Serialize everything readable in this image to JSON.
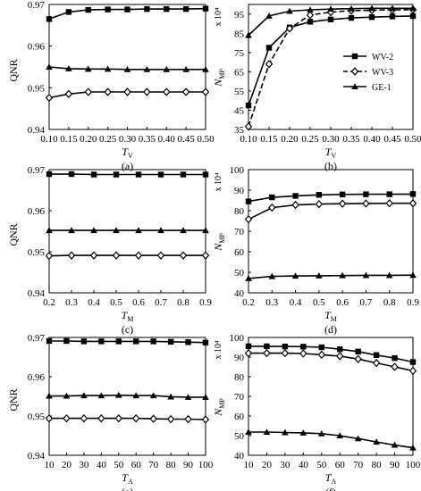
{
  "legend_entries": [
    "WV-2",
    "WV-3",
    "GE-1"
  ],
  "chart_data": [
    {
      "type": "line",
      "panel_label": "(a)",
      "xlabel": "T",
      "xlabel_sub": "V",
      "ylabel": "QNR",
      "ylabel_sub": "",
      "ylabel_extra": "",
      "x": [
        0.1,
        0.15,
        0.2,
        0.25,
        0.3,
        0.35,
        0.4,
        0.45,
        0.5
      ],
      "x_ticks": [
        "0.10",
        "0.15",
        "0.20",
        "0.25",
        "0.30",
        "0.35",
        "0.40",
        "0.45",
        "0.50"
      ],
      "xlim": [
        0.1,
        0.5
      ],
      "ylim": [
        0.94,
        0.97
      ],
      "y_ticks": [
        "0.94",
        "0.95",
        "0.96",
        "0.97"
      ],
      "series": [
        {
          "name": "WV-2",
          "marker": "square",
          "dashed": false,
          "values": [
            0.9665,
            0.9682,
            0.9687,
            0.9688,
            0.9688,
            0.9689,
            0.9689,
            0.9689,
            0.969
          ]
        },
        {
          "name": "WV-3",
          "marker": "diamond",
          "dashed": false,
          "values": [
            0.9476,
            0.9485,
            0.949,
            0.949,
            0.949,
            0.949,
            0.949,
            0.949,
            0.949
          ]
        },
        {
          "name": "GE-1",
          "marker": "triangle",
          "dashed": false,
          "values": [
            0.955,
            0.9546,
            0.9545,
            0.9545,
            0.9544,
            0.9544,
            0.9544,
            0.9544,
            0.9544
          ]
        }
      ]
    },
    {
      "type": "line",
      "panel_label": "(b)",
      "xlabel": "T",
      "xlabel_sub": "V",
      "ylabel": "N",
      "ylabel_sub": "MP",
      "ylabel_extra": "x 10⁴",
      "x": [
        0.1,
        0.15,
        0.2,
        0.25,
        0.3,
        0.35,
        0.4,
        0.45,
        0.5
      ],
      "x_ticks": [
        "0.10",
        "0.15",
        "0.20",
        "0.25",
        "0.30",
        "0.35",
        "0.40",
        "0.45",
        "0.50"
      ],
      "xlim": [
        0.1,
        0.5
      ],
      "ylim": [
        35,
        100
      ],
      "y_ticks": [
        "35",
        "45",
        "55",
        "65",
        "75",
        "85",
        "95"
      ],
      "legend_position": "right-middle",
      "series": [
        {
          "name": "WV-2",
          "marker": "square",
          "dashed": false,
          "values": [
            47.5,
            77.5,
            88.0,
            91.0,
            92.2,
            93.0,
            93.4,
            93.8,
            94.0
          ]
        },
        {
          "name": "WV-3",
          "marker": "diamond",
          "dashed": true,
          "values": [
            36.5,
            69.0,
            87.5,
            94.5,
            96.0,
            96.8,
            97.0,
            97.2,
            97.3
          ]
        },
        {
          "name": "GE-1",
          "marker": "triangle",
          "dashed": false,
          "values": [
            84.0,
            94.0,
            96.5,
            97.2,
            97.6,
            97.8,
            98.0,
            98.0,
            98.0
          ]
        }
      ]
    },
    {
      "type": "line",
      "panel_label": "(c)",
      "xlabel": "T",
      "xlabel_sub": "M",
      "ylabel": "QNR",
      "ylabel_sub": "",
      "ylabel_extra": "",
      "x": [
        0.2,
        0.3,
        0.4,
        0.5,
        0.6,
        0.7,
        0.8,
        0.9
      ],
      "x_ticks": [
        "0.2",
        "0.3",
        "0.4",
        "0.5",
        "0.6",
        "0.7",
        "0.8",
        "0.9"
      ],
      "xlim": [
        0.2,
        0.9
      ],
      "ylim": [
        0.94,
        0.97
      ],
      "y_ticks": [
        "0.94",
        "0.95",
        "0.96",
        "0.97"
      ],
      "series": [
        {
          "name": "WV-2",
          "marker": "square",
          "dashed": false,
          "values": [
            0.9689,
            0.9689,
            0.9688,
            0.9688,
            0.9688,
            0.9688,
            0.9688,
            0.9688
          ]
        },
        {
          "name": "WV-3",
          "marker": "diamond",
          "dashed": false,
          "values": [
            0.949,
            0.9491,
            0.9491,
            0.9491,
            0.9491,
            0.9491,
            0.9491,
            0.9491
          ]
        },
        {
          "name": "GE-1",
          "marker": "triangle",
          "dashed": false,
          "values": [
            0.9552,
            0.9552,
            0.9552,
            0.9552,
            0.9552,
            0.9552,
            0.9552,
            0.9552
          ]
        }
      ]
    },
    {
      "type": "line",
      "panel_label": "(d)",
      "xlabel": "T",
      "xlabel_sub": "M",
      "ylabel": "N",
      "ylabel_sub": "MP",
      "ylabel_extra": "x 10⁴",
      "x": [
        0.2,
        0.3,
        0.4,
        0.5,
        0.6,
        0.7,
        0.8,
        0.9
      ],
      "x_ticks": [
        "0.2",
        "0.3",
        "0.4",
        "0.5",
        "0.6",
        "0.7",
        "0.8",
        "0.9"
      ],
      "xlim": [
        0.2,
        0.9
      ],
      "ylim": [
        40,
        100
      ],
      "y_ticks": [
        "40",
        "50",
        "60",
        "70",
        "80",
        "90",
        "100"
      ],
      "series": [
        {
          "name": "WV-2",
          "marker": "square",
          "dashed": false,
          "values": [
            84.5,
            86.5,
            87.2,
            87.7,
            87.9,
            88.0,
            88.0,
            88.1
          ]
        },
        {
          "name": "WV-3",
          "marker": "diamond",
          "dashed": false,
          "values": [
            75.8,
            81.5,
            82.8,
            83.2,
            83.4,
            83.5,
            83.6,
            83.6
          ]
        },
        {
          "name": "GE-1",
          "marker": "triangle",
          "dashed": false,
          "values": [
            47.0,
            48.0,
            48.2,
            48.3,
            48.4,
            48.5,
            48.5,
            48.6
          ]
        }
      ]
    },
    {
      "type": "line",
      "panel_label": "(e)",
      "xlabel": "T",
      "xlabel_sub": "A",
      "ylabel": "QNR",
      "ylabel_sub": "",
      "ylabel_extra": "",
      "x": [
        10,
        20,
        30,
        40,
        50,
        60,
        70,
        80,
        90,
        100
      ],
      "x_ticks": [
        "10",
        "20",
        "30",
        "40",
        "50",
        "60",
        "70",
        "80",
        "90",
        "100"
      ],
      "xlim": [
        10,
        100
      ],
      "ylim": [
        0.94,
        0.97
      ],
      "y_ticks": [
        "0.94",
        "0.95",
        "0.96",
        "0.97"
      ],
      "series": [
        {
          "name": "WV-2",
          "marker": "square",
          "dashed": false,
          "values": [
            0.9691,
            0.9691,
            0.969,
            0.969,
            0.969,
            0.969,
            0.969,
            0.9689,
            0.9688,
            0.9687
          ]
        },
        {
          "name": "WV-3",
          "marker": "diamond",
          "dashed": false,
          "values": [
            0.9494,
            0.9494,
            0.9494,
            0.9494,
            0.9494,
            0.9494,
            0.9493,
            0.9492,
            0.9492,
            0.9491
          ]
        },
        {
          "name": "GE-1",
          "marker": "triangle",
          "dashed": false,
          "values": [
            0.9551,
            0.9551,
            0.9552,
            0.9552,
            0.9553,
            0.9552,
            0.9552,
            0.9549,
            0.9548,
            0.9548
          ]
        }
      ]
    },
    {
      "type": "line",
      "panel_label": "(f)",
      "xlabel": "T",
      "xlabel_sub": "A",
      "ylabel": "N",
      "ylabel_sub": "MP",
      "ylabel_extra": "x 10⁴",
      "x": [
        10,
        20,
        30,
        40,
        50,
        60,
        70,
        80,
        90,
        100
      ],
      "x_ticks": [
        "10",
        "20",
        "30",
        "40",
        "50",
        "60",
        "70",
        "80",
        "90",
        "100"
      ],
      "xlim": [
        10,
        100
      ],
      "ylim": [
        40,
        100
      ],
      "y_ticks": [
        "40",
        "50",
        "60",
        "70",
        "80",
        "90",
        "100"
      ],
      "series": [
        {
          "name": "WV-2",
          "marker": "square",
          "dashed": false,
          "values": [
            95.5,
            95.5,
            95.4,
            95.3,
            95.0,
            94.0,
            92.8,
            91.0,
            89.5,
            87.5
          ]
        },
        {
          "name": "WV-3",
          "marker": "diamond",
          "dashed": false,
          "values": [
            92.0,
            92.0,
            92.0,
            91.8,
            91.2,
            90.5,
            89.0,
            87.0,
            85.0,
            83.0
          ]
        },
        {
          "name": "GE-1",
          "marker": "triangle",
          "dashed": false,
          "values": [
            51.8,
            51.8,
            51.6,
            51.4,
            51.0,
            50.0,
            48.5,
            46.8,
            45.2,
            43.8
          ]
        }
      ]
    }
  ]
}
